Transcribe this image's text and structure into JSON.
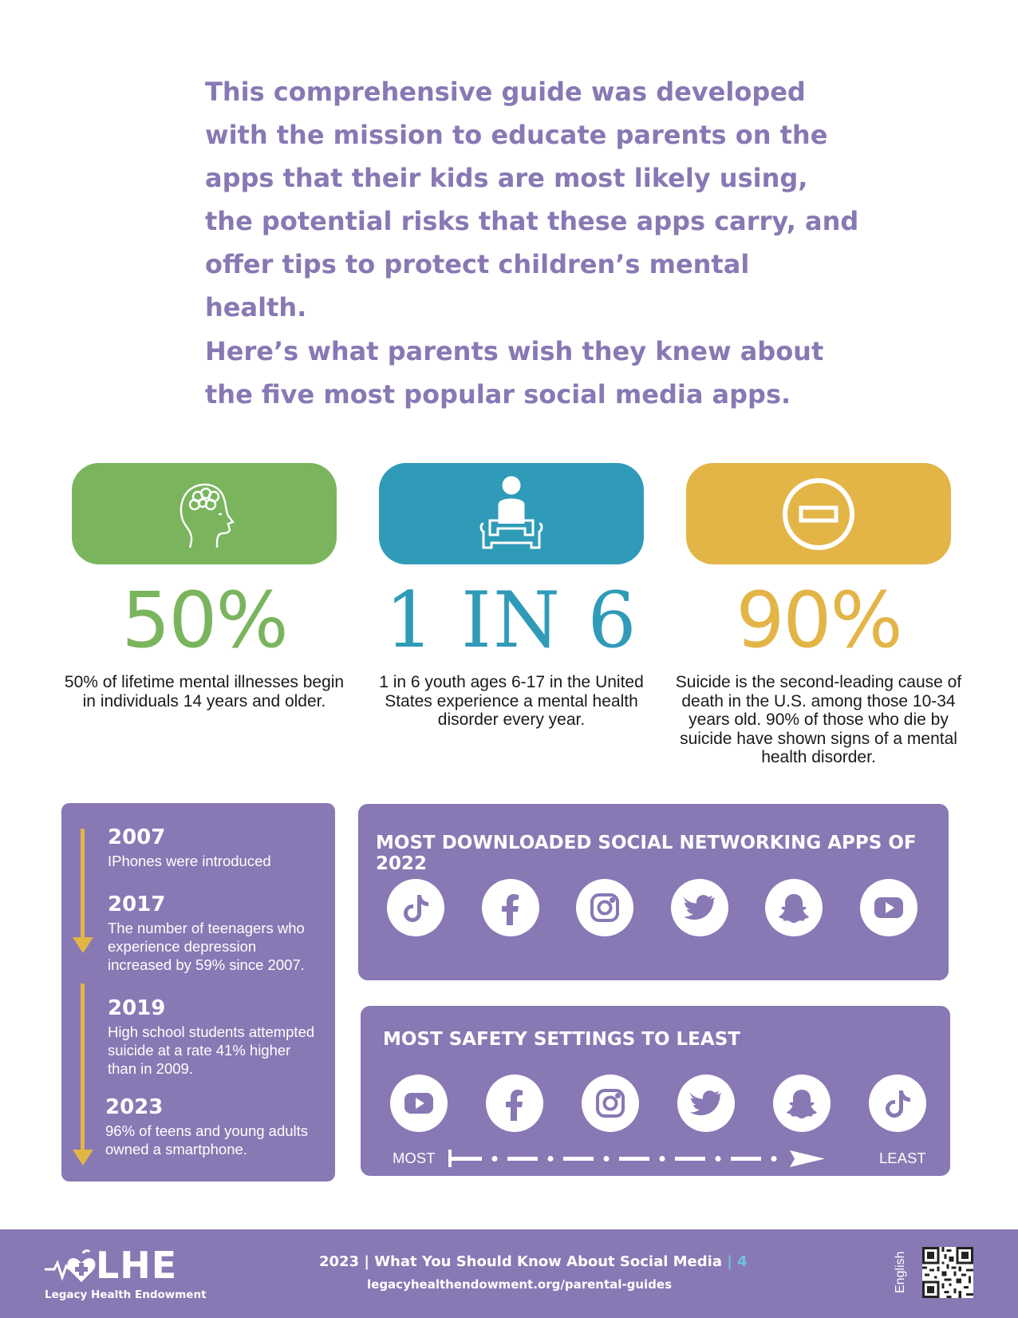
{
  "intro": {
    "paragraph1": "This comprehensive guide was developed with the mission to educate parents on the apps that their kids are most likely using, the potential risks that these apps carry, and offer tips to protect children’s mental health.",
    "paragraph2": "Here’s what parents wish they knew about the five most popular social media apps."
  },
  "stats": [
    {
      "icon": "brain-head-icon",
      "value": "50%",
      "text": "50% of lifetime mental illnesses begin in individuals 14 years and older.",
      "color": "#7ab55e"
    },
    {
      "icon": "seated-person-icon",
      "value": "1 IN 6",
      "text": "1 in 6 youth ages 6-17 in the United States experience a mental health disorder every year.",
      "color": "#2f9bb8"
    },
    {
      "icon": "no-entry-icon",
      "value": "90%",
      "text": "Suicide is the second-leading cause of death in the U.S. among those 10-34 years old. 90% of those who die by suicide have shown signs of a mental health disorder.",
      "color": "#e3b547"
    }
  ],
  "timeline": [
    {
      "year": "2007",
      "desc": "IPhones were introduced"
    },
    {
      "year": "2017",
      "desc": "The number of teenagers who experience depression increased by 59% since 2007."
    },
    {
      "year": "2019",
      "desc": "High school students attempted suicide at a rate 41% higher than in 2009."
    },
    {
      "year": "2023",
      "desc": "96% of teens and young adults owned a smartphone."
    }
  ],
  "downloads": {
    "title": "MOST DOWNLOADED SOCIAL NETWORKING APPS OF 2022",
    "apps": [
      "tiktok-icon",
      "facebook-icon",
      "instagram-icon",
      "twitter-icon",
      "snapchat-icon",
      "youtube-icon"
    ]
  },
  "safety": {
    "title": "MOST SAFETY SETTINGS TO LEAST",
    "apps": [
      "youtube-icon",
      "facebook-icon",
      "instagram-icon",
      "twitter-icon",
      "snapchat-icon",
      "tiktok-icon"
    ],
    "most_label": "MOST",
    "least_label": "LEAST"
  },
  "footer": {
    "logo": "LHE",
    "org": "Legacy Health Endowment",
    "title": "2023 | What You Should Know About Social Media",
    "page": "| 4",
    "url": "legacyhealthendowment.org/parental-guides",
    "language": "English"
  },
  "colors": {
    "purple": "#8878b4",
    "green": "#7ab55e",
    "blue": "#2f9bb8",
    "gold": "#e3b547"
  }
}
